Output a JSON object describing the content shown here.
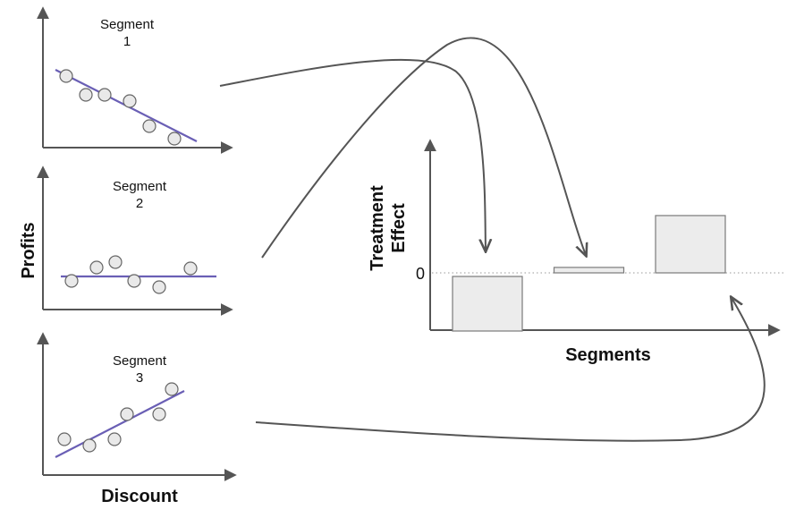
{
  "segments": [
    {
      "title_line1": "Segment",
      "title_line2": "1",
      "trend": "negative"
    },
    {
      "title_line1": "Segment",
      "title_line2": "2",
      "trend": "flat"
    },
    {
      "title_line1": "Segment",
      "title_line2": "3",
      "trend": "positive"
    }
  ],
  "left_axes": {
    "y_label": "Profits",
    "x_label": "Discount"
  },
  "effect_chart": {
    "y_label_line1": "Treatment",
    "y_label_line2": "Effect",
    "x_label": "Segments",
    "zero_label": "0"
  },
  "chart_data": {
    "type": "bar",
    "categories": [
      "Segment 1",
      "Segment 2",
      "Segment 3"
    ],
    "values": [
      -1.0,
      0.1,
      1.05
    ],
    "xlabel": "Segments",
    "ylabel": "Treatment Effect",
    "ylim": [
      -1.0,
      2.1
    ]
  },
  "colors": {
    "trend_line": "#6a5fb5",
    "point_fill": "#e9e9e9",
    "bar_fill": "#ececec",
    "axis": "#555555"
  }
}
